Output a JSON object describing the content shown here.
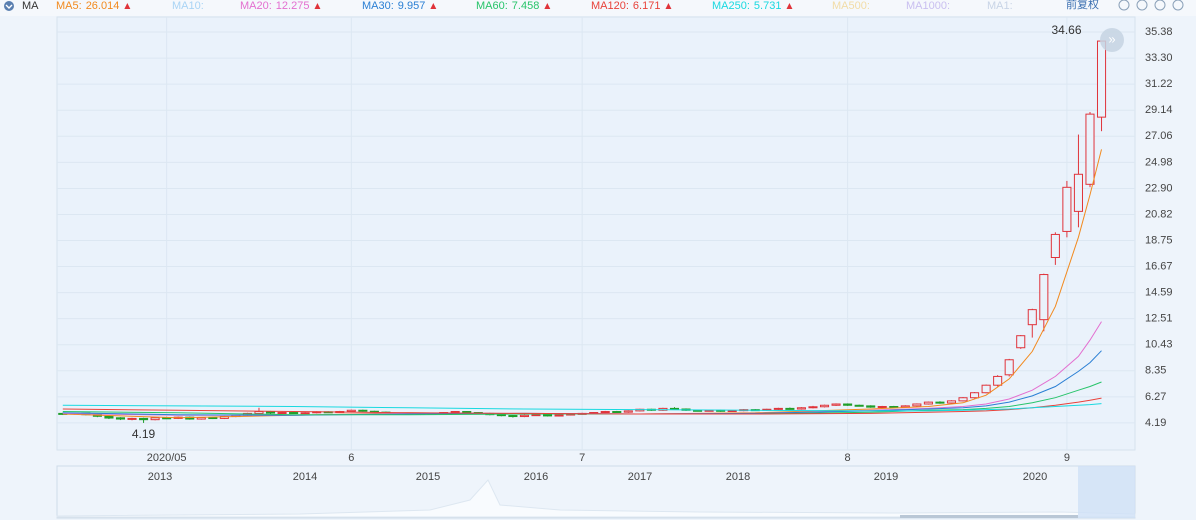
{
  "chart_data": {
    "type": "candlestick",
    "indicator": "MA",
    "adjust_label": "前复权",
    "up_color": "#e0333a",
    "down_color": "#1f9e2a",
    "ylim": [
      2.03,
      36.58
    ],
    "yticks": [
      4.19,
      6.27,
      8.35,
      10.43,
      12.51,
      14.59,
      16.67,
      18.75,
      20.82,
      {
        "value": 22.9,
        "label": "22.90"
      },
      24.98,
      27.06,
      29.14,
      31.22,
      {
        "value": 33.3,
        "label": "33.30"
      },
      35.38
    ],
    "grid": true,
    "categories": [
      null,
      null,
      null,
      null,
      null,
      null,
      null,
      null,
      null,
      "2020/05",
      null,
      null,
      null,
      null,
      null,
      null,
      null,
      null,
      null,
      null,
      null,
      null,
      null,
      null,
      null,
      "6",
      null,
      null,
      null,
      null,
      null,
      null,
      null,
      null,
      null,
      null,
      null,
      null,
      null,
      null,
      null,
      null,
      null,
      null,
      null,
      "7",
      null,
      null,
      null,
      null,
      null,
      null,
      null,
      null,
      null,
      null,
      null,
      null,
      null,
      null,
      null,
      null,
      null,
      null,
      null,
      null,
      null,
      null,
      "8",
      null,
      null,
      null,
      null,
      null,
      null,
      null,
      null,
      null,
      null,
      null,
      null,
      null,
      null,
      null,
      null,
      null,
      null,
      "9",
      null,
      null,
      null
    ],
    "candles": [
      [
        4.95,
        4.88,
        4.82,
        5.0
      ],
      [
        4.9,
        4.98,
        4.85,
        5.02
      ],
      [
        4.98,
        4.85,
        4.8,
        5.0
      ],
      [
        4.85,
        4.72,
        4.65,
        4.9
      ],
      [
        4.72,
        4.58,
        4.5,
        4.78
      ],
      [
        4.6,
        4.5,
        4.42,
        4.65
      ],
      [
        4.5,
        4.55,
        4.4,
        4.6
      ],
      [
        4.55,
        4.45,
        4.19,
        4.6
      ],
      [
        4.45,
        4.6,
        4.4,
        4.65
      ],
      [
        4.6,
        4.55,
        4.5,
        4.68
      ],
      [
        4.55,
        4.65,
        4.5,
        4.7
      ],
      [
        4.65,
        4.5,
        4.45,
        4.7
      ],
      [
        4.5,
        4.62,
        4.45,
        4.66
      ],
      [
        4.62,
        4.55,
        4.5,
        4.7
      ],
      [
        4.55,
        4.7,
        4.5,
        4.75
      ],
      [
        4.7,
        4.8,
        4.65,
        4.85
      ],
      [
        4.8,
        4.95,
        4.75,
        5.0
      ],
      [
        4.95,
        5.1,
        4.9,
        5.4
      ],
      [
        5.1,
        4.98,
        4.9,
        5.15
      ],
      [
        4.98,
        5.02,
        4.9,
        5.08
      ],
      [
        5.02,
        4.95,
        4.9,
        5.05
      ],
      [
        4.95,
        5.0,
        4.9,
        5.05
      ],
      [
        5.0,
        5.08,
        4.95,
        5.12
      ],
      [
        5.08,
        5.02,
        4.98,
        5.12
      ],
      [
        5.02,
        5.1,
        4.98,
        5.15
      ],
      [
        5.1,
        5.2,
        5.05,
        5.25
      ],
      [
        5.2,
        5.12,
        5.08,
        5.25
      ],
      [
        5.12,
        5.05,
        5.0,
        5.16
      ],
      [
        5.05,
        4.95,
        4.9,
        5.1
      ],
      [
        4.95,
        4.9,
        4.85,
        5.0
      ],
      [
        4.9,
        4.95,
        4.85,
        5.0
      ],
      [
        4.95,
        4.88,
        4.82,
        5.0
      ],
      [
        4.88,
        4.95,
        4.85,
        5.0
      ],
      [
        4.95,
        5.02,
        4.9,
        5.06
      ],
      [
        5.02,
        5.1,
        4.98,
        5.14
      ],
      [
        5.1,
        5.02,
        4.98,
        5.14
      ],
      [
        5.02,
        4.95,
        4.9,
        5.06
      ],
      [
        4.95,
        4.85,
        4.8,
        5.0
      ],
      [
        4.85,
        4.78,
        4.72,
        4.9
      ],
      [
        4.78,
        4.7,
        4.62,
        4.82
      ],
      [
        4.7,
        4.8,
        4.65,
        4.85
      ],
      [
        4.8,
        4.85,
        4.75,
        4.9
      ],
      [
        4.85,
        4.75,
        4.7,
        4.9
      ],
      [
        4.75,
        4.82,
        4.7,
        4.86
      ],
      [
        4.82,
        4.9,
        4.78,
        4.95
      ],
      [
        4.9,
        4.95,
        4.85,
        5.0
      ],
      [
        4.95,
        5.02,
        4.9,
        5.06
      ],
      [
        5.02,
        5.1,
        4.98,
        5.15
      ],
      [
        5.1,
        5.05,
        5.0,
        5.15
      ],
      [
        5.05,
        5.15,
        5.0,
        5.2
      ],
      [
        5.15,
        5.28,
        5.1,
        5.32
      ],
      [
        5.28,
        5.2,
        5.15,
        5.32
      ],
      [
        5.2,
        5.35,
        5.15,
        5.4
      ],
      [
        5.35,
        5.3,
        5.25,
        5.45
      ],
      [
        5.3,
        5.2,
        5.15,
        5.35
      ],
      [
        5.2,
        5.15,
        5.1,
        5.25
      ],
      [
        5.15,
        5.2,
        5.1,
        5.25
      ],
      [
        5.2,
        5.12,
        5.08,
        5.25
      ],
      [
        5.12,
        5.18,
        5.08,
        5.22
      ],
      [
        5.18,
        5.25,
        5.12,
        5.3
      ],
      [
        5.25,
        5.2,
        5.15,
        5.3
      ],
      [
        5.2,
        5.28,
        5.15,
        5.32
      ],
      [
        5.28,
        5.35,
        5.22,
        5.4
      ],
      [
        5.35,
        5.3,
        5.25,
        5.42
      ],
      [
        5.3,
        5.4,
        5.25,
        5.45
      ],
      [
        5.4,
        5.48,
        5.35,
        5.55
      ],
      [
        5.48,
        5.6,
        5.42,
        5.65
      ],
      [
        5.6,
        5.7,
        5.55,
        5.75
      ],
      [
        5.7,
        5.6,
        5.55,
        5.75
      ],
      [
        5.6,
        5.55,
        5.5,
        5.65
      ],
      [
        5.55,
        5.45,
        5.4,
        5.6
      ],
      [
        5.45,
        5.5,
        5.4,
        5.55
      ],
      [
        5.5,
        5.45,
        5.4,
        5.55
      ],
      [
        5.45,
        5.55,
        5.4,
        5.6
      ],
      [
        5.55,
        5.7,
        5.5,
        5.75
      ],
      [
        5.7,
        5.85,
        5.65,
        5.9
      ],
      [
        5.85,
        5.78,
        5.72,
        5.92
      ],
      [
        5.78,
        5.95,
        5.72,
        6.0
      ],
      [
        5.95,
        6.2,
        5.9,
        6.25
      ],
      [
        6.2,
        6.6,
        6.15,
        6.65
      ],
      [
        6.6,
        7.2,
        6.55,
        7.25
      ],
      [
        7.2,
        7.9,
        7.1,
        8.0
      ],
      [
        8.03,
        9.23,
        7.9,
        9.3
      ],
      [
        10.19,
        11.15,
        10.1,
        11.2
      ],
      [
        12.03,
        13.23,
        11.0,
        13.3
      ],
      [
        12.43,
        16.03,
        11.5,
        16.1
      ],
      [
        17.39,
        19.23,
        16.8,
        19.4
      ],
      [
        19.47,
        22.99,
        19.0,
        23.5
      ],
      [
        21.07,
        24.03,
        19.8,
        27.2
      ],
      [
        23.23,
        28.83,
        23.0,
        29.0
      ],
      [
        28.59,
        34.66,
        27.47,
        34.66
      ]
    ],
    "series": [
      {
        "name": "MA5:",
        "color": "#f28a1e",
        "x": [
          0,
          10,
          20,
          30,
          40,
          50,
          60,
          70,
          75,
          78,
          80,
          82,
          84,
          86,
          88,
          89,
          90
        ],
        "values": [
          4.9,
          4.6,
          4.8,
          5.0,
          4.9,
          4.9,
          5.0,
          5.3,
          5.5,
          5.8,
          6.4,
          7.7,
          9.9,
          13.5,
          19.0,
          22.4,
          26.014
        ]
      },
      {
        "name": "MA10:",
        "color": "#a9d4f5"
      },
      {
        "name": "MA20:",
        "color": "#e36fd0",
        "x": [
          0,
          10,
          20,
          30,
          40,
          50,
          60,
          70,
          75,
          78,
          80,
          82,
          84,
          86,
          88,
          89,
          90
        ],
        "values": [
          4.95,
          4.8,
          4.8,
          4.95,
          4.95,
          4.9,
          4.95,
          5.2,
          5.35,
          5.5,
          5.7,
          6.1,
          6.8,
          7.9,
          9.5,
          10.8,
          12.275
        ]
      },
      {
        "name": "MA30:",
        "color": "#2a7fd4",
        "x": [
          0,
          10,
          20,
          30,
          40,
          50,
          60,
          70,
          75,
          78,
          80,
          82,
          84,
          86,
          88,
          89,
          90
        ],
        "values": [
          5.0,
          4.85,
          4.8,
          4.9,
          4.95,
          4.9,
          4.95,
          5.15,
          5.3,
          5.4,
          5.55,
          5.85,
          6.35,
          7.1,
          8.3,
          9.0,
          9.957
        ]
      },
      {
        "name": "MA60:",
        "color": "#27c46a",
        "x": [
          0,
          10,
          20,
          30,
          40,
          50,
          60,
          70,
          75,
          78,
          80,
          82,
          84,
          86,
          88,
          89,
          90
        ],
        "values": [
          5.1,
          5.0,
          4.85,
          4.85,
          4.9,
          4.9,
          4.9,
          5.05,
          5.2,
          5.25,
          5.35,
          5.5,
          5.8,
          6.2,
          6.8,
          7.1,
          7.458
        ]
      },
      {
        "name": "MA120:",
        "color": "#e8423a",
        "x": [
          0,
          10,
          20,
          30,
          40,
          50,
          60,
          70,
          75,
          78,
          80,
          82,
          84,
          86,
          88,
          89,
          90
        ],
        "values": [
          5.3,
          5.2,
          5.1,
          5.0,
          4.95,
          4.9,
          4.9,
          4.95,
          5.05,
          5.1,
          5.15,
          5.25,
          5.4,
          5.6,
          5.85,
          6.0,
          6.171
        ]
      },
      {
        "name": "MA250:",
        "color": "#19d9e0",
        "x": [
          0,
          10,
          20,
          30,
          40,
          50,
          60,
          70,
          75,
          78,
          80,
          82,
          84,
          86,
          88,
          89,
          90
        ],
        "values": [
          5.6,
          5.55,
          5.5,
          5.4,
          5.3,
          5.25,
          5.2,
          5.15,
          5.15,
          5.2,
          5.25,
          5.3,
          5.4,
          5.5,
          5.6,
          5.65,
          5.731
        ]
      },
      {
        "name": "MA500:",
        "color": "#f2dca6"
      },
      {
        "name": "MA1000:",
        "color": "#c9bff0"
      },
      {
        "name": "MA1:",
        "color": "#c8d4e6"
      }
    ],
    "navigator_years": [
      "2013",
      "2014",
      "2015",
      "2016",
      "2017",
      "2018",
      "2019",
      "2020"
    ]
  }
}
